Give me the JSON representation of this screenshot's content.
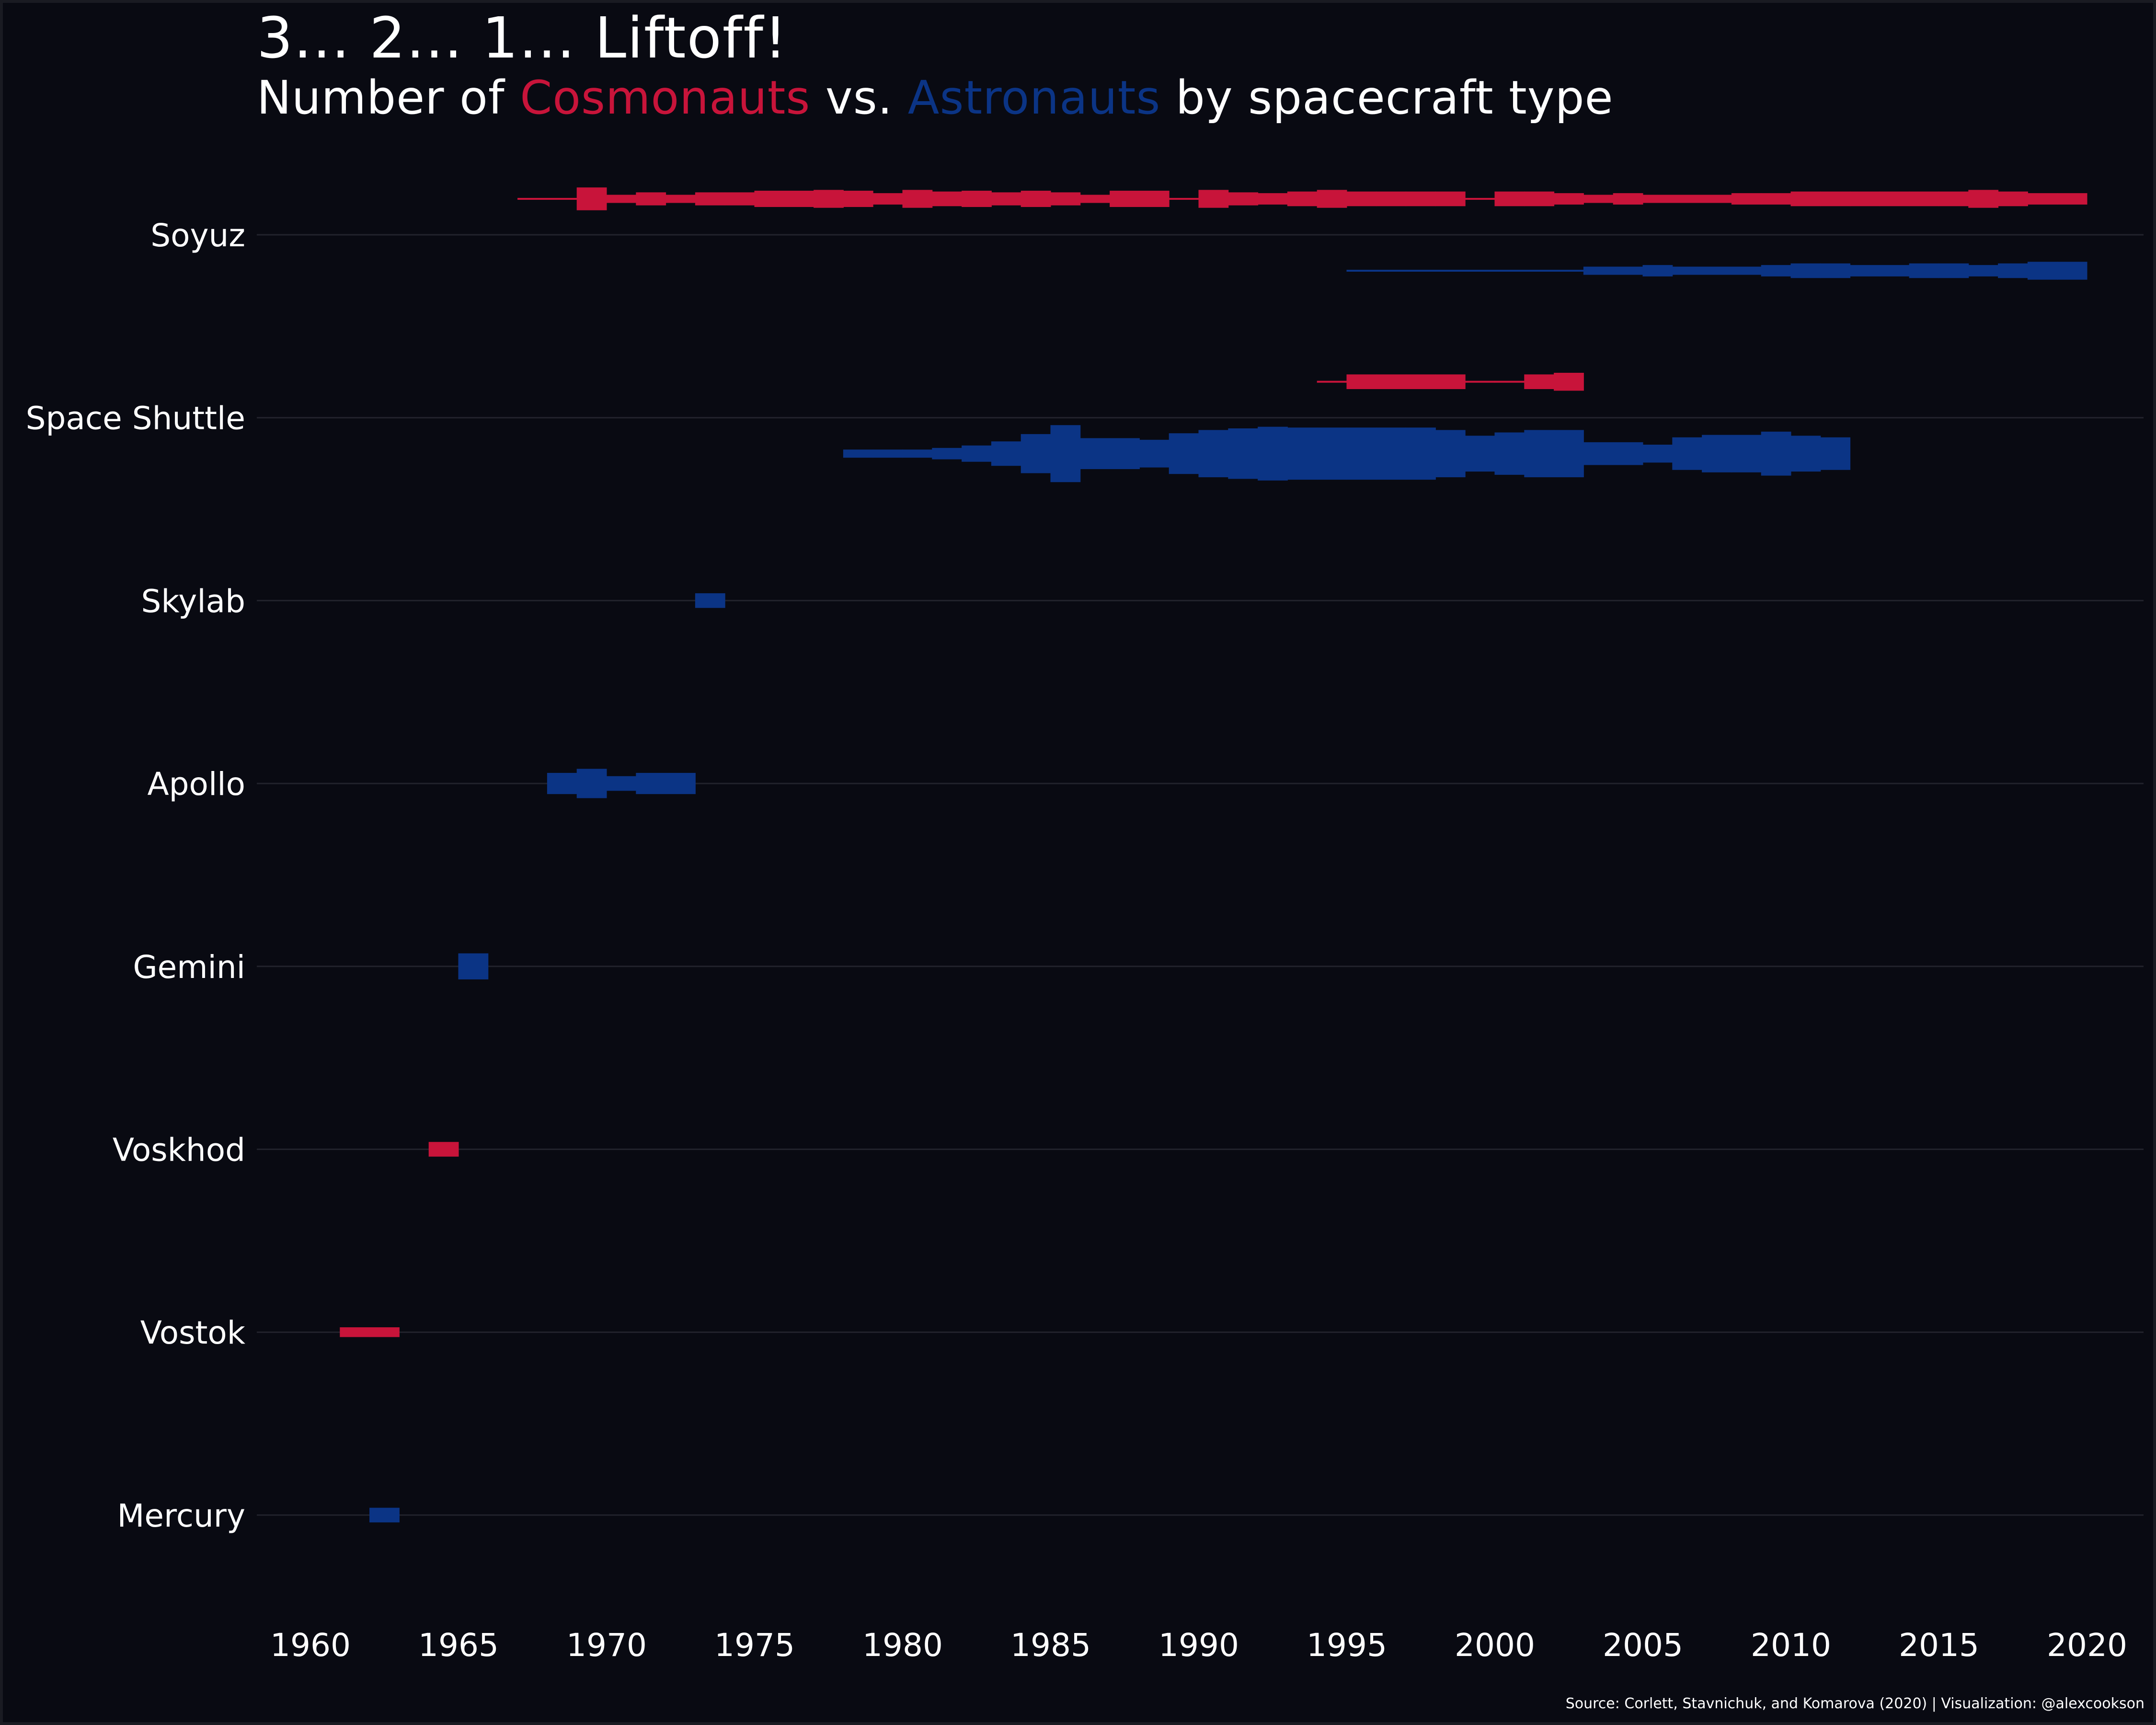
{
  "title": "3... 2... 1... Liftoff!",
  "subtitle": {
    "prefix": "Number of",
    "group_a": "Cosmonauts",
    "middle": "vs.",
    "group_b": "Astronauts",
    "suffix": "by spacecraft type"
  },
  "caption": "Source: Corlett, Stavnichuk, and Komarova (2020) | Visualization: @alexcookson",
  "colors": {
    "background": "#090a12",
    "cosmonauts": "#c8143a",
    "astronauts": "#0b3485",
    "text": "#ffffff",
    "grid": "#22232c"
  },
  "chart_data": {
    "type": "area",
    "x_range": [
      1958,
      2021
    ],
    "x_ticks": [
      1960,
      1965,
      1970,
      1975,
      1980,
      1985,
      1990,
      1995,
      2000,
      2005,
      2010,
      2015,
      2020
    ],
    "categories": [
      "Soyuz",
      "Space Shuttle",
      "Skylab",
      "Apollo",
      "Gemini",
      "Voskhod",
      "Vostok",
      "Mercury"
    ],
    "legend_placement": "subtitle",
    "grid": "horizontal",
    "series": [
      {
        "name": "Cosmonauts",
        "category": "Soyuz",
        "offset": 1,
        "points": [
          [
            1967,
            1
          ],
          [
            1968,
            1
          ],
          [
            1969,
            14
          ],
          [
            1970,
            5
          ],
          [
            1971,
            8
          ],
          [
            1972,
            5
          ],
          [
            1973,
            8
          ],
          [
            1974,
            8
          ],
          [
            1975,
            10
          ],
          [
            1976,
            10
          ],
          [
            1977,
            11
          ],
          [
            1978,
            10
          ],
          [
            1979,
            7
          ],
          [
            1980,
            11
          ],
          [
            1981,
            9
          ],
          [
            1982,
            10
          ],
          [
            1983,
            8
          ],
          [
            1984,
            10
          ],
          [
            1985,
            8
          ],
          [
            1986,
            5
          ],
          [
            1987,
            10
          ],
          [
            1988,
            10
          ],
          [
            1989,
            1
          ],
          [
            1990,
            11
          ],
          [
            1991,
            8
          ],
          [
            1992,
            7
          ],
          [
            1993,
            9
          ],
          [
            1994,
            11
          ],
          [
            1995,
            9
          ],
          [
            1996,
            9
          ],
          [
            1997,
            9
          ],
          [
            1998,
            9
          ],
          [
            1999,
            1
          ],
          [
            2000,
            9
          ],
          [
            2001,
            9
          ],
          [
            2002,
            7
          ],
          [
            2003,
            5
          ],
          [
            2004,
            7
          ],
          [
            2005,
            5
          ],
          [
            2006,
            5
          ],
          [
            2007,
            5
          ],
          [
            2008,
            7
          ],
          [
            2009,
            7
          ],
          [
            2010,
            9
          ],
          [
            2011,
            9
          ],
          [
            2012,
            9
          ],
          [
            2013,
            9
          ],
          [
            2014,
            9
          ],
          [
            2015,
            9
          ],
          [
            2016,
            11
          ],
          [
            2017,
            9
          ],
          [
            2018,
            7
          ],
          [
            2019,
            7
          ]
        ]
      },
      {
        "name": "Astronauts",
        "category": "Soyuz",
        "offset": -1,
        "points": [
          [
            1995,
            1
          ],
          [
            1996,
            1
          ],
          [
            1997,
            1
          ],
          [
            1998,
            1
          ],
          [
            1999,
            1
          ],
          [
            2000,
            1
          ],
          [
            2001,
            1
          ],
          [
            2002,
            1
          ],
          [
            2003,
            5
          ],
          [
            2004,
            5
          ],
          [
            2005,
            7
          ],
          [
            2006,
            5
          ],
          [
            2007,
            5
          ],
          [
            2008,
            5
          ],
          [
            2009,
            7
          ],
          [
            2010,
            9
          ],
          [
            2011,
            9
          ],
          [
            2012,
            7
          ],
          [
            2013,
            7
          ],
          [
            2014,
            9
          ],
          [
            2015,
            9
          ],
          [
            2016,
            7
          ],
          [
            2017,
            9
          ],
          [
            2018,
            11
          ],
          [
            2019,
            11
          ]
        ]
      },
      {
        "name": "Cosmonauts",
        "category": "Space Shuttle",
        "offset": 1,
        "points": [
          [
            1994,
            1
          ],
          [
            1995,
            9
          ],
          [
            1996,
            9
          ],
          [
            1997,
            9
          ],
          [
            1998,
            9
          ],
          [
            1999,
            1
          ],
          [
            2000,
            1
          ],
          [
            2001,
            9
          ],
          [
            2002,
            11
          ]
        ]
      },
      {
        "name": "Astronauts",
        "category": "Space Shuttle",
        "offset": -1,
        "points": [
          [
            1978,
            5
          ],
          [
            1979,
            5
          ],
          [
            1980,
            5
          ],
          [
            1981,
            7
          ],
          [
            1982,
            10
          ],
          [
            1983,
            15
          ],
          [
            1984,
            24
          ],
          [
            1985,
            35
          ],
          [
            1986,
            19
          ],
          [
            1987,
            19
          ],
          [
            1988,
            17
          ],
          [
            1989,
            25
          ],
          [
            1990,
            29
          ],
          [
            1991,
            31
          ],
          [
            1992,
            33
          ],
          [
            1993,
            32
          ],
          [
            1994,
            32
          ],
          [
            1995,
            32
          ],
          [
            1996,
            32
          ],
          [
            1997,
            32
          ],
          [
            1998,
            29
          ],
          [
            1999,
            22
          ],
          [
            2000,
            26
          ],
          [
            2001,
            29
          ],
          [
            2002,
            29
          ],
          [
            2003,
            14
          ],
          [
            2004,
            14
          ],
          [
            2005,
            11
          ],
          [
            2006,
            20
          ],
          [
            2007,
            23
          ],
          [
            2008,
            23
          ],
          [
            2009,
            27
          ],
          [
            2010,
            22
          ],
          [
            2011,
            20
          ]
        ]
      },
      {
        "name": "Astronauts",
        "category": "Skylab",
        "offset": 0,
        "points": [
          [
            1973,
            9
          ]
        ]
      },
      {
        "name": "Astronauts",
        "category": "Apollo",
        "offset": 0,
        "points": [
          [
            1968,
            13
          ],
          [
            1969,
            18
          ],
          [
            1970,
            9
          ],
          [
            1971,
            13
          ],
          [
            1972,
            13
          ]
        ]
      },
      {
        "name": "Astronauts",
        "category": "Gemini",
        "offset": 0,
        "points": [
          [
            1965,
            16
          ]
        ]
      },
      {
        "name": "Cosmonauts",
        "category": "Voskhod",
        "offset": 0,
        "points": [
          [
            1964,
            9
          ]
        ]
      },
      {
        "name": "Cosmonauts",
        "category": "Vostok",
        "offset": 0,
        "points": [
          [
            1961,
            6
          ],
          [
            1962,
            6
          ]
        ]
      },
      {
        "name": "Astronauts",
        "category": "Mercury",
        "offset": 0,
        "points": [
          [
            1962,
            9
          ]
        ]
      }
    ]
  }
}
